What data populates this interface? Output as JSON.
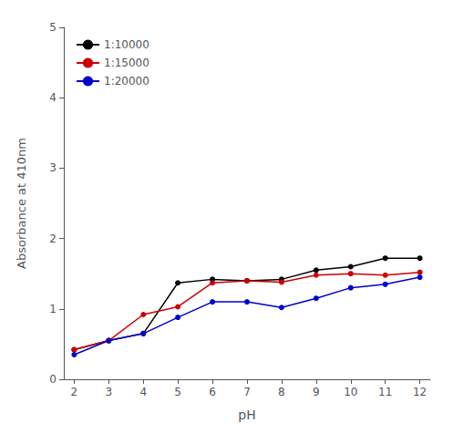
{
  "chart_data": {
    "type": "line",
    "x": [
      2,
      3,
      4,
      5,
      6,
      7,
      8,
      9,
      10,
      11,
      12
    ],
    "series": [
      {
        "name": "1:10000",
        "color": "#000000",
        "values": [
          0.42,
          0.55,
          0.65,
          1.37,
          1.42,
          1.4,
          1.42,
          1.55,
          1.6,
          1.72,
          1.72
        ]
      },
      {
        "name": "1:15000",
        "color": "#cc0000",
        "values": [
          0.42,
          0.55,
          0.92,
          1.03,
          1.37,
          1.4,
          1.38,
          1.48,
          1.5,
          1.48,
          1.52
        ]
      },
      {
        "name": "1:20000",
        "color": "#0000cc",
        "values": [
          0.35,
          0.55,
          0.65,
          0.88,
          1.1,
          1.1,
          1.02,
          1.15,
          1.3,
          1.35,
          1.45
        ]
      }
    ],
    "xlabel": "pH",
    "ylabel": "Absorbance at 410nm",
    "xlim": [
      1.7,
      12.3
    ],
    "xticks": [
      2,
      3,
      4,
      5,
      6,
      7,
      8,
      9,
      10,
      11,
      12
    ],
    "ylim": [
      0,
      5
    ],
    "yticks": [
      0,
      1,
      2,
      3,
      4,
      5
    ],
    "marker": "circle",
    "grid": false,
    "legend": "upper left"
  }
}
